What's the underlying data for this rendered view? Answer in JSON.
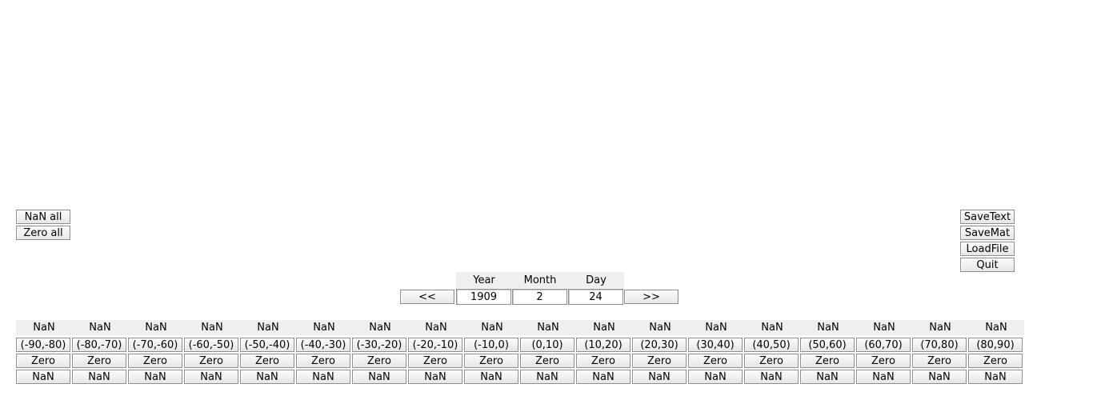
{
  "left_buttons": {
    "nan_all": "NaN all",
    "zero_all": "Zero all"
  },
  "right_buttons": {
    "save_text": "SaveText",
    "save_mat": "SaveMat",
    "load_file": "LoadFile",
    "quit": "Quit"
  },
  "date": {
    "prev": "<<",
    "next": ">>",
    "year_label": "Year",
    "month_label": "Month",
    "day_label": "Day",
    "year": "1909",
    "month": "2",
    "day": "24"
  },
  "bands": [
    {
      "value": "NaN",
      "range": "(-90,-80)",
      "zero": "Zero",
      "nan": "NaN"
    },
    {
      "value": "NaN",
      "range": "(-80,-70)",
      "zero": "Zero",
      "nan": "NaN"
    },
    {
      "value": "NaN",
      "range": "(-70,-60)",
      "zero": "Zero",
      "nan": "NaN"
    },
    {
      "value": "NaN",
      "range": "(-60,-50)",
      "zero": "Zero",
      "nan": "NaN"
    },
    {
      "value": "NaN",
      "range": "(-50,-40)",
      "zero": "Zero",
      "nan": "NaN"
    },
    {
      "value": "NaN",
      "range": "(-40,-30)",
      "zero": "Zero",
      "nan": "NaN"
    },
    {
      "value": "NaN",
      "range": "(-30,-20)",
      "zero": "Zero",
      "nan": "NaN"
    },
    {
      "value": "NaN",
      "range": "(-20,-10)",
      "zero": "Zero",
      "nan": "NaN"
    },
    {
      "value": "NaN",
      "range": "(-10,0)",
      "zero": "Zero",
      "nan": "NaN"
    },
    {
      "value": "NaN",
      "range": "(0,10)",
      "zero": "Zero",
      "nan": "NaN"
    },
    {
      "value": "NaN",
      "range": "(10,20)",
      "zero": "Zero",
      "nan": "NaN"
    },
    {
      "value": "NaN",
      "range": "(20,30)",
      "zero": "Zero",
      "nan": "NaN"
    },
    {
      "value": "NaN",
      "range": "(30,40)",
      "zero": "Zero",
      "nan": "NaN"
    },
    {
      "value": "NaN",
      "range": "(40,50)",
      "zero": "Zero",
      "nan": "NaN"
    },
    {
      "value": "NaN",
      "range": "(50,60)",
      "zero": "Zero",
      "nan": "NaN"
    },
    {
      "value": "NaN",
      "range": "(60,70)",
      "zero": "Zero",
      "nan": "NaN"
    },
    {
      "value": "NaN",
      "range": "(70,80)",
      "zero": "Zero",
      "nan": "NaN"
    },
    {
      "value": "NaN",
      "range": "(80,90)",
      "zero": "Zero",
      "nan": "NaN"
    }
  ]
}
